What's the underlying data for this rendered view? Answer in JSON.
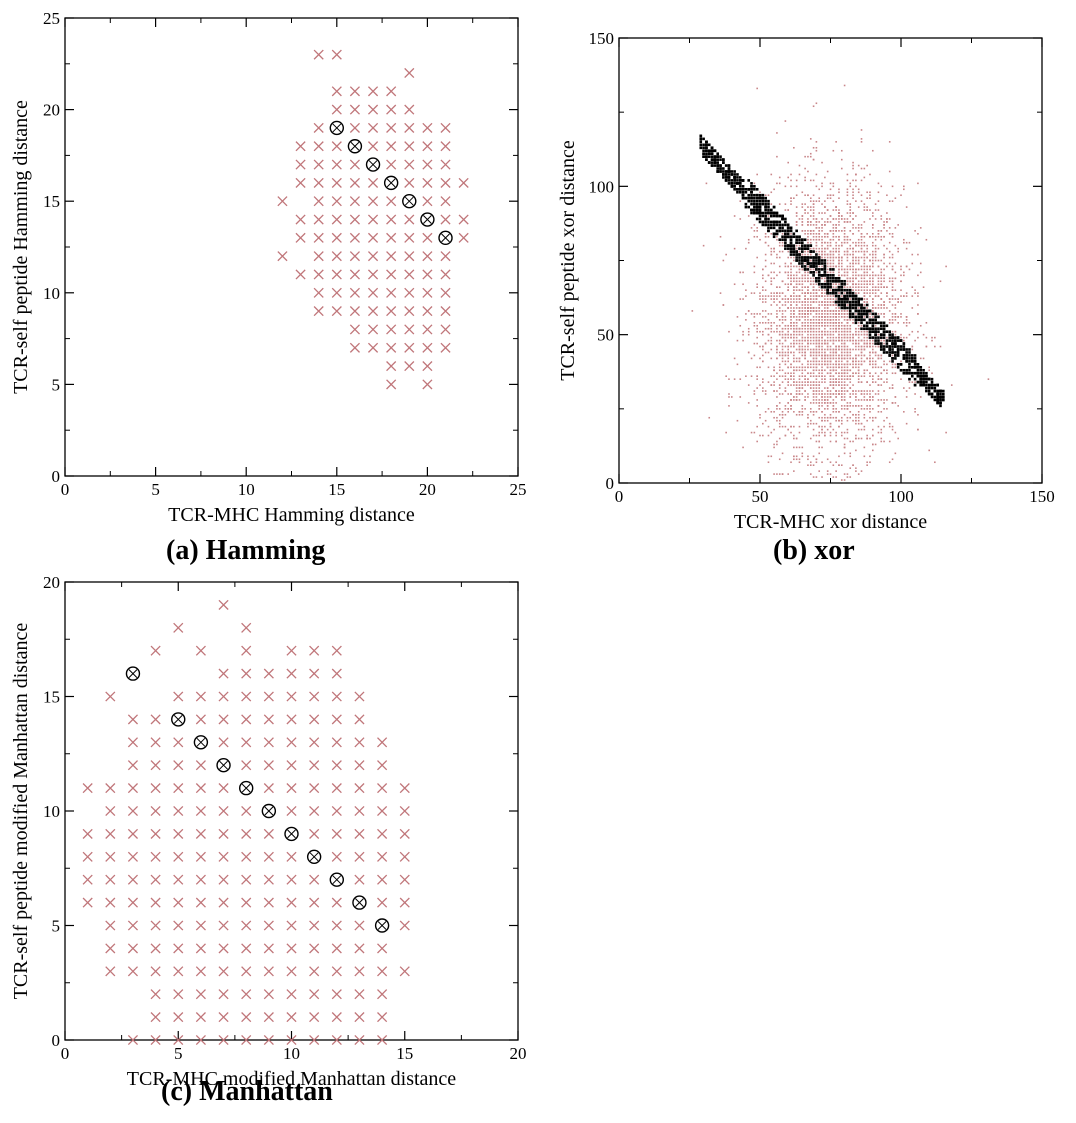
{
  "figure": {
    "captions": {
      "a": "(a) Hamming",
      "b": "(b) xor",
      "c": "(c) Manhattan"
    }
  },
  "colors": {
    "cross": "#c0767a",
    "circle": "#000000",
    "xor_dots": "#c9878a",
    "xor_band": "#000000",
    "axis": "#000000"
  },
  "chart_data": [
    {
      "type": "scatter",
      "id": "hamming",
      "xlabel": "TCR-MHC Hamming distance",
      "ylabel": "TCR-self peptide Hamming distance",
      "xlim": [
        0,
        25
      ],
      "ylim": [
        0,
        25
      ],
      "xticks": [
        0,
        5,
        10,
        15,
        20,
        25
      ],
      "yticks": [
        0,
        5,
        10,
        15,
        20,
        25
      ],
      "grid": false,
      "cross_rows": [
        {
          "y": 23,
          "x": [
            14,
            15
          ]
        },
        {
          "y": 22,
          "x": [
            19
          ]
        },
        {
          "y": 21,
          "x": [
            15,
            16,
            17,
            18
          ]
        },
        {
          "y": 20,
          "x": [
            15,
            16,
            17,
            18,
            19
          ]
        },
        {
          "y": 19,
          "x": [
            14,
            16,
            17,
            18,
            19,
            20,
            21
          ]
        },
        {
          "y": 18,
          "x": [
            13,
            14,
            15,
            17,
            18,
            19,
            20,
            21
          ]
        },
        {
          "y": 17,
          "x": [
            13,
            14,
            15,
            16,
            18,
            19,
            20,
            21
          ]
        },
        {
          "y": 16,
          "x": [
            13,
            14,
            15,
            16,
            17,
            19,
            20,
            21,
            22
          ]
        },
        {
          "y": 15,
          "x": [
            12,
            14,
            15,
            16,
            17,
            18,
            20,
            21
          ]
        },
        {
          "y": 14,
          "x": [
            13,
            14,
            15,
            16,
            17,
            18,
            19,
            21,
            22
          ]
        },
        {
          "y": 13,
          "x": [
            13,
            14,
            15,
            16,
            17,
            18,
            19,
            20,
            22
          ]
        },
        {
          "y": 12,
          "x": [
            12,
            14,
            15,
            16,
            17,
            18,
            19,
            20,
            21
          ]
        },
        {
          "y": 11,
          "x": [
            13,
            14,
            15,
            16,
            17,
            18,
            19,
            20,
            21
          ]
        },
        {
          "y": 10,
          "x": [
            14,
            15,
            16,
            17,
            18,
            19,
            20,
            21
          ]
        },
        {
          "y": 9,
          "x": [
            14,
            15,
            16,
            17,
            18,
            19,
            20,
            21
          ]
        },
        {
          "y": 8,
          "x": [
            16,
            17,
            18,
            19,
            20,
            21
          ]
        },
        {
          "y": 7,
          "x": [
            16,
            17,
            18,
            19,
            20,
            21
          ]
        },
        {
          "y": 6,
          "x": [
            18,
            19,
            20
          ]
        },
        {
          "y": 5,
          "x": [
            18,
            20
          ]
        }
      ],
      "circled_points": [
        [
          15,
          19
        ],
        [
          16,
          18
        ],
        [
          17,
          17
        ],
        [
          18,
          16
        ],
        [
          19,
          15
        ],
        [
          20,
          14
        ],
        [
          21,
          13
        ]
      ]
    },
    {
      "type": "scatter",
      "id": "xor",
      "xlabel": "TCR-MHC xor distance",
      "ylabel": "TCR-self peptide xor distance",
      "xlim": [
        0,
        150
      ],
      "ylim": [
        0,
        150
      ],
      "xticks": [
        0,
        50,
        100,
        150
      ],
      "yticks": [
        0,
        50,
        100,
        150
      ],
      "grid": false,
      "cloud": {
        "x_center": 75,
        "y_center": 55,
        "x_sd": 13,
        "y_sd": 22,
        "dot_count": 4200
      },
      "band": {
        "x_start": 29,
        "x_end": 115,
        "sum_center": 143,
        "sum_halfwidth": 5,
        "dot_count": 1100
      }
    },
    {
      "type": "scatter",
      "id": "manhattan",
      "xlabel": "TCR-MHC modified Manhattan distance",
      "ylabel": "TCR-self peptide modified Manhattan distance",
      "xlim": [
        0,
        20
      ],
      "ylim": [
        0,
        20
      ],
      "xticks": [
        0,
        5,
        10,
        15,
        20
      ],
      "yticks": [
        0,
        5,
        10,
        15,
        20
      ],
      "grid": false,
      "cross_rows": [
        {
          "y": 19,
          "x": [
            7
          ]
        },
        {
          "y": 18,
          "x": [
            5,
            8
          ]
        },
        {
          "y": 17,
          "x": [
            4,
            6,
            8,
            10,
            11,
            12
          ]
        },
        {
          "y": 16,
          "x": [
            7,
            8,
            9,
            10,
            11,
            12
          ]
        },
        {
          "y": 15,
          "x": [
            2,
            5,
            6,
            7,
            8,
            9,
            10,
            11,
            12,
            13
          ]
        },
        {
          "y": 14,
          "x": [
            3,
            4,
            6,
            7,
            8,
            9,
            10,
            11,
            12,
            13
          ]
        },
        {
          "y": 13,
          "x": [
            3,
            4,
            5,
            7,
            8,
            9,
            10,
            11,
            12,
            13,
            14
          ]
        },
        {
          "y": 12,
          "x": [
            3,
            4,
            5,
            6,
            8,
            9,
            10,
            11,
            12,
            13,
            14
          ]
        },
        {
          "y": 11,
          "x": [
            1,
            2,
            3,
            4,
            5,
            6,
            7,
            9,
            10,
            11,
            12,
            13,
            14,
            15
          ]
        },
        {
          "y": 10,
          "x": [
            2,
            3,
            4,
            5,
            6,
            7,
            8,
            10,
            11,
            12,
            13,
            14,
            15
          ]
        },
        {
          "y": 9,
          "x": [
            1,
            2,
            3,
            4,
            5,
            6,
            7,
            8,
            9,
            11,
            12,
            13,
            14,
            15
          ]
        },
        {
          "y": 8,
          "x": [
            1,
            2,
            3,
            4,
            5,
            6,
            7,
            8,
            9,
            10,
            12,
            13,
            14,
            15
          ]
        },
        {
          "y": 7,
          "x": [
            1,
            2,
            3,
            4,
            5,
            6,
            7,
            8,
            9,
            10,
            11,
            13,
            14,
            15
          ]
        },
        {
          "y": 6,
          "x": [
            1,
            2,
            3,
            4,
            5,
            6,
            7,
            8,
            9,
            10,
            11,
            12,
            14,
            15
          ]
        },
        {
          "y": 5,
          "x": [
            2,
            3,
            4,
            5,
            6,
            7,
            8,
            9,
            10,
            11,
            12,
            13,
            15
          ]
        },
        {
          "y": 4,
          "x": [
            2,
            3,
            4,
            5,
            6,
            7,
            8,
            9,
            10,
            11,
            12,
            13,
            14
          ]
        },
        {
          "y": 3,
          "x": [
            2,
            3,
            4,
            5,
            6,
            7,
            8,
            9,
            10,
            11,
            12,
            13,
            14,
            15
          ]
        },
        {
          "y": 2,
          "x": [
            4,
            5,
            6,
            7,
            8,
            9,
            10,
            11,
            12,
            13,
            14
          ]
        },
        {
          "y": 1,
          "x": [
            4,
            5,
            6,
            7,
            8,
            9,
            10,
            11,
            12,
            13,
            14
          ]
        },
        {
          "y": 0,
          "x": [
            3,
            4,
            5,
            6,
            7,
            8,
            9,
            10,
            11,
            12,
            13,
            14
          ]
        }
      ],
      "circled_points": [
        [
          3,
          16
        ],
        [
          5,
          14
        ],
        [
          6,
          13
        ],
        [
          7,
          12
        ],
        [
          8,
          11
        ],
        [
          9,
          10
        ],
        [
          10,
          9
        ],
        [
          11,
          8
        ],
        [
          12,
          7
        ],
        [
          13,
          6
        ],
        [
          14,
          5
        ]
      ]
    }
  ]
}
